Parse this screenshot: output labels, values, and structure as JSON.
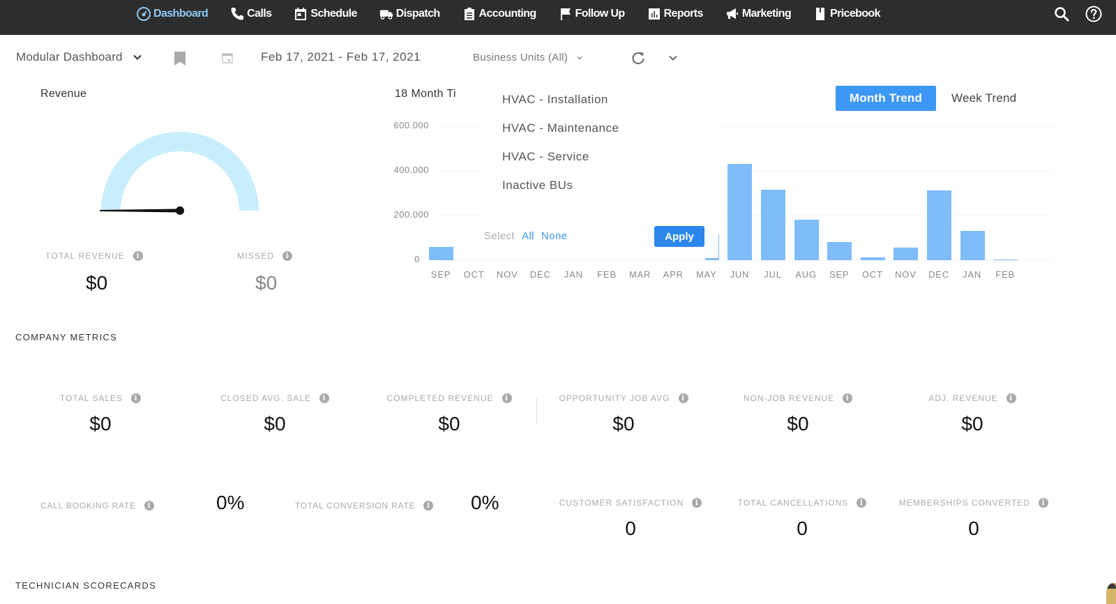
{
  "nav": {
    "items": [
      {
        "label": "Dashboard",
        "icon": "dashboard-icon",
        "active": true
      },
      {
        "label": "Calls",
        "icon": "phone-icon",
        "active": false
      },
      {
        "label": "Schedule",
        "icon": "calendar-icon",
        "active": false
      },
      {
        "label": "Dispatch",
        "icon": "truck-icon",
        "active": false
      },
      {
        "label": "Accounting",
        "icon": "clipboard-icon",
        "active": false
      },
      {
        "label": "Follow Up",
        "icon": "flag-icon",
        "active": false
      },
      {
        "label": "Reports",
        "icon": "bar-chart-icon",
        "active": false
      },
      {
        "label": "Marketing",
        "icon": "megaphone-icon",
        "active": false
      },
      {
        "label": "Pricebook",
        "icon": "book-icon",
        "active": false
      }
    ],
    "right_icons": [
      "search-icon",
      "help-icon"
    ]
  },
  "toolbar": {
    "dashboard_select": "Modular Dashboard",
    "date_range": "Feb 17, 2021 - Feb 17, 2021",
    "business_units": "Business Units (All)"
  },
  "revenue": {
    "title": "Revenue",
    "total_revenue_label": "TOTAL REVENUE",
    "total_revenue_value": "$0",
    "missed_label": "MISSED",
    "missed_value": "$0",
    "gauge_color": "#c9eefb"
  },
  "trend": {
    "title": "18 Month Ti",
    "month_trend_label": "Month Trend",
    "week_trend_label": "Week Trend",
    "active": "Month Trend",
    "accent_color": "#3d97f5",
    "bar_color": "#7fbcf9"
  },
  "bu_dropdown": {
    "options": [
      "HVAC - Installation",
      "HVAC - Maintenance",
      "HVAC - Service",
      "Inactive BUs"
    ],
    "select_label": "Select",
    "all_label": "All",
    "none_label": "None",
    "apply_label": "Apply"
  },
  "chart_data": {
    "type": "bar",
    "title": "18 Month Trend",
    "xlabel": "",
    "ylabel": "",
    "ylim": [
      0,
      600000
    ],
    "yticks": [
      "0",
      "200,000",
      "400,000",
      "600,000"
    ],
    "yticks_display": [
      "0",
      "200.000",
      "400.000",
      "600.000"
    ],
    "categories": [
      "SEP",
      "OCT",
      "NOV",
      "DEC",
      "JAN",
      "FEB",
      "MAR",
      "APR",
      "MAY",
      "JUN",
      "JUL",
      "AUG",
      "SEP",
      "OCT",
      "NOV",
      "DEC",
      "JAN",
      "FEB"
    ],
    "values": [
      60000,
      0,
      0,
      0,
      0,
      0,
      0,
      0,
      115000,
      430000,
      315000,
      180000,
      80000,
      12000,
      55000,
      312000,
      130000,
      3000
    ],
    "grid": true,
    "legend": "none"
  },
  "company_metrics": {
    "title": "COMPANY METRICS",
    "row1": [
      {
        "label": "TOTAL SALES",
        "value": "$0"
      },
      {
        "label": "CLOSED AVG. SALE",
        "value": "$0"
      },
      {
        "label": "COMPLETED REVENUE",
        "value": "$0"
      },
      {
        "label": "OPPORTUNITY JOB AVG",
        "value": "$0"
      },
      {
        "label": "NON-JOB REVENUE",
        "value": "$0"
      },
      {
        "label": "ADJ. REVENUE",
        "value": "$0"
      }
    ],
    "rates": [
      {
        "label": "CALL BOOKING RATE",
        "value": "0%"
      },
      {
        "label": "TOTAL CONVERSION RATE",
        "value": "0%"
      }
    ],
    "row2": [
      {
        "label": "CUSTOMER SATISFACTION",
        "value": "0"
      },
      {
        "label": "TOTAL CANCELLATIONS",
        "value": "0"
      },
      {
        "label": "MEMBERSHIPS CONVERTED",
        "value": "0"
      }
    ]
  },
  "technician": {
    "title": "TECHNICIAN SCORECARDS"
  }
}
